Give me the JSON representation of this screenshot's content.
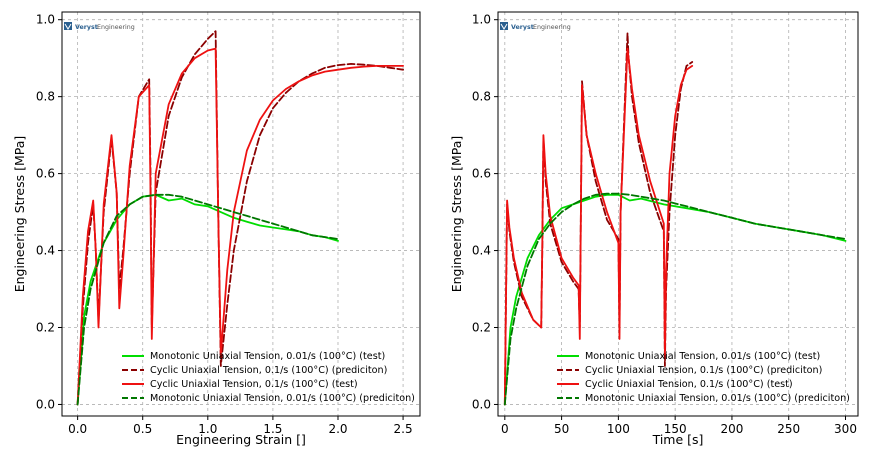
{
  "logo": {
    "brand": "Veryst",
    "suffix": "Engineering"
  },
  "charts": [
    {
      "xlabel": "Engineering Strain []",
      "ylabel": "Engineering Stress [MPa]",
      "xticks": [
        "0.0",
        "0.5",
        "1.0",
        "1.5",
        "2.0",
        "2.5"
      ],
      "yticks": [
        "0.0",
        "0.2",
        "0.4",
        "0.6",
        "0.8",
        "1.0"
      ],
      "legend": [
        "Monotonic Uniaxial Tension, 0.01/s (100°C) (test)",
        "Cyclic Uniaxial Tension, 0.1/s (100°C) (prediciton)",
        "Cyclic Uniaxial Tension, 0.1/s (100°C) (test)",
        "Monotonic Uniaxial Tension, 0.01/s (100°C) (prediciton)"
      ]
    },
    {
      "xlabel": "Time [s]",
      "ylabel": "Engineering Stress [MPa]",
      "xticks": [
        "0",
        "50",
        "100",
        "150",
        "200",
        "250",
        "300"
      ],
      "yticks": [
        "0.0",
        "0.2",
        "0.4",
        "0.6",
        "0.8",
        "1.0"
      ],
      "legend": [
        "Monotonic Uniaxial Tension, 0.01/s (100°C) (test)",
        "Cyclic Uniaxial Tension, 0.1/s (100°C) (prediciton)",
        "Cyclic Uniaxial Tension, 0.1/s (100°C) (test)",
        "Monotonic Uniaxial Tension, 0.01/s (100°C) (prediciton)"
      ]
    }
  ],
  "chart_data": [
    {
      "type": "line",
      "xlabel": "Engineering Strain []",
      "ylabel": "Engineering Stress [MPa]",
      "xlim": [
        -0.12,
        2.63
      ],
      "ylim": [
        -0.03,
        1.02
      ],
      "grid": true,
      "legend_position": "bottom-right",
      "series": [
        {
          "name": "Monotonic Uniaxial Tension, 0.01/s (100°C) (test)",
          "color": "#00dd00",
          "style": "solid",
          "x": [
            0,
            0.05,
            0.1,
            0.2,
            0.3,
            0.4,
            0.5,
            0.6,
            0.7,
            0.8,
            0.9,
            1.0,
            1.1,
            1.2,
            1.3,
            1.4,
            1.5,
            1.6,
            1.7,
            1.8,
            1.9,
            2.0
          ],
          "y": [
            0,
            0.23,
            0.32,
            0.42,
            0.48,
            0.52,
            0.54,
            0.545,
            0.53,
            0.535,
            0.52,
            0.515,
            0.5,
            0.485,
            0.475,
            0.465,
            0.46,
            0.455,
            0.45,
            0.44,
            0.435,
            0.425
          ]
        },
        {
          "name": "Cyclic Uniaxial Tension, 0.1/s (100°C) (prediciton)",
          "color": "#8b0000",
          "style": "dashed",
          "x": [
            0,
            0.04,
            0.08,
            0.12,
            0.14,
            0.16,
            0.2,
            0.26,
            0.3,
            0.32,
            0.35,
            0.4,
            0.47,
            0.55,
            0.56,
            0.57,
            0.6,
            0.7,
            0.8,
            0.9,
            1.0,
            1.06,
            1.08,
            1.1,
            1.15,
            1.2,
            1.3,
            1.4,
            1.5,
            1.6,
            1.7,
            1.8,
            1.9,
            2.0,
            2.1,
            2.2,
            2.3,
            2.4,
            2.5
          ],
          "y": [
            0,
            0.25,
            0.42,
            0.52,
            0.4,
            0.22,
            0.5,
            0.69,
            0.55,
            0.3,
            0.4,
            0.6,
            0.8,
            0.845,
            0.6,
            0.2,
            0.55,
            0.75,
            0.85,
            0.91,
            0.95,
            0.97,
            0.5,
            0.1,
            0.26,
            0.4,
            0.58,
            0.7,
            0.77,
            0.81,
            0.84,
            0.86,
            0.875,
            0.882,
            0.885,
            0.883,
            0.88,
            0.875,
            0.87
          ]
        },
        {
          "name": "Cyclic Uniaxial Tension, 0.1/s (100°C) (test)",
          "color": "#ee1111",
          "style": "solid",
          "x": [
            0,
            0.04,
            0.08,
            0.12,
            0.14,
            0.16,
            0.2,
            0.26,
            0.3,
            0.32,
            0.35,
            0.4,
            0.47,
            0.55,
            0.56,
            0.57,
            0.6,
            0.7,
            0.8,
            0.9,
            1.0,
            1.06,
            1.08,
            1.1,
            1.15,
            1.2,
            1.3,
            1.4,
            1.5,
            1.6,
            1.7,
            1.8,
            1.9,
            2.0,
            2.1,
            2.2,
            2.3,
            2.4,
            2.5
          ],
          "y": [
            0,
            0.28,
            0.45,
            0.53,
            0.4,
            0.2,
            0.52,
            0.7,
            0.55,
            0.25,
            0.38,
            0.62,
            0.8,
            0.83,
            0.55,
            0.17,
            0.6,
            0.78,
            0.86,
            0.9,
            0.92,
            0.925,
            0.5,
            0.13,
            0.35,
            0.5,
            0.66,
            0.74,
            0.79,
            0.82,
            0.84,
            0.855,
            0.865,
            0.87,
            0.875,
            0.878,
            0.88,
            0.88,
            0.88
          ]
        },
        {
          "name": "Monotonic Uniaxial Tension, 0.01/s (100°C) (prediciton)",
          "color": "#007700",
          "style": "dashed",
          "x": [
            0,
            0.05,
            0.1,
            0.2,
            0.3,
            0.4,
            0.5,
            0.6,
            0.7,
            0.8,
            0.9,
            1.0,
            1.1,
            1.2,
            1.3,
            1.4,
            1.5,
            1.6,
            1.7,
            1.8,
            1.9,
            2.0
          ],
          "y": [
            0,
            0.2,
            0.3,
            0.42,
            0.49,
            0.52,
            0.54,
            0.545,
            0.545,
            0.54,
            0.53,
            0.52,
            0.51,
            0.5,
            0.49,
            0.48,
            0.47,
            0.46,
            0.45,
            0.44,
            0.435,
            0.43
          ]
        }
      ]
    },
    {
      "type": "line",
      "xlabel": "Time [s]",
      "ylabel": "Engineering Stress [MPa]",
      "xlim": [
        -6,
        311
      ],
      "ylim": [
        -0.03,
        1.02
      ],
      "grid": true,
      "legend_position": "bottom-right",
      "series": [
        {
          "name": "Monotonic Uniaxial Tension, 0.01/s (100°C) (test)",
          "color": "#00dd00",
          "style": "solid",
          "x": [
            0,
            5,
            10,
            20,
            30,
            40,
            50,
            60,
            70,
            80,
            90,
            100,
            110,
            120,
            140,
            160,
            180,
            200,
            220,
            240,
            260,
            280,
            300
          ],
          "y": [
            0,
            0.2,
            0.28,
            0.38,
            0.44,
            0.48,
            0.51,
            0.52,
            0.53,
            0.54,
            0.545,
            0.545,
            0.53,
            0.535,
            0.52,
            0.51,
            0.5,
            0.485,
            0.47,
            0.46,
            0.45,
            0.44,
            0.425
          ]
        },
        {
          "name": "Cyclic Uniaxial Tension, 0.1/s (100°C) (prediciton)",
          "color": "#8b0000",
          "style": "dashed",
          "x": [
            0,
            2,
            4,
            8,
            15,
            25,
            32,
            33,
            34,
            36,
            40,
            50,
            60,
            65,
            66,
            67,
            68,
            72,
            80,
            90,
            100,
            101,
            102,
            108,
            109,
            112,
            118,
            128,
            140,
            141,
            142,
            145,
            150,
            155,
            160,
            165
          ],
          "y": [
            0,
            0.52,
            0.45,
            0.37,
            0.28,
            0.22,
            0.2,
            0.4,
            0.69,
            0.58,
            0.47,
            0.37,
            0.32,
            0.3,
            0.2,
            0.5,
            0.84,
            0.7,
            0.58,
            0.48,
            0.43,
            0.2,
            0.5,
            0.965,
            0.9,
            0.8,
            0.68,
            0.55,
            0.45,
            0.1,
            0.3,
            0.5,
            0.7,
            0.82,
            0.88,
            0.89
          ]
        },
        {
          "name": "Cyclic Uniaxial Tension, 0.1/s (100°C) (test)",
          "color": "#ee1111",
          "style": "solid",
          "x": [
            0,
            2,
            4,
            8,
            15,
            25,
            32,
            33,
            34,
            36,
            40,
            50,
            60,
            65,
            66,
            67,
            68,
            72,
            80,
            90,
            100,
            101,
            102,
            108,
            109,
            112,
            118,
            128,
            140,
            141,
            142,
            145,
            150,
            155,
            160,
            165
          ],
          "y": [
            0,
            0.53,
            0.46,
            0.38,
            0.29,
            0.22,
            0.2,
            0.42,
            0.7,
            0.6,
            0.49,
            0.38,
            0.33,
            0.31,
            0.17,
            0.5,
            0.83,
            0.7,
            0.6,
            0.5,
            0.42,
            0.17,
            0.5,
            0.925,
            0.9,
            0.82,
            0.7,
            0.58,
            0.47,
            0.13,
            0.35,
            0.6,
            0.75,
            0.83,
            0.87,
            0.88
          ]
        },
        {
          "name": "Monotonic Uniaxial Tension, 0.01/s (100°C) (prediciton)",
          "color": "#007700",
          "style": "dashed",
          "x": [
            0,
            5,
            10,
            20,
            30,
            40,
            50,
            60,
            70,
            80,
            90,
            100,
            110,
            120,
            140,
            160,
            180,
            200,
            220,
            240,
            260,
            280,
            300
          ],
          "y": [
            0,
            0.17,
            0.25,
            0.36,
            0.43,
            0.47,
            0.5,
            0.52,
            0.535,
            0.545,
            0.548,
            0.548,
            0.545,
            0.54,
            0.53,
            0.515,
            0.5,
            0.485,
            0.47,
            0.46,
            0.45,
            0.44,
            0.43
          ]
        }
      ]
    }
  ]
}
